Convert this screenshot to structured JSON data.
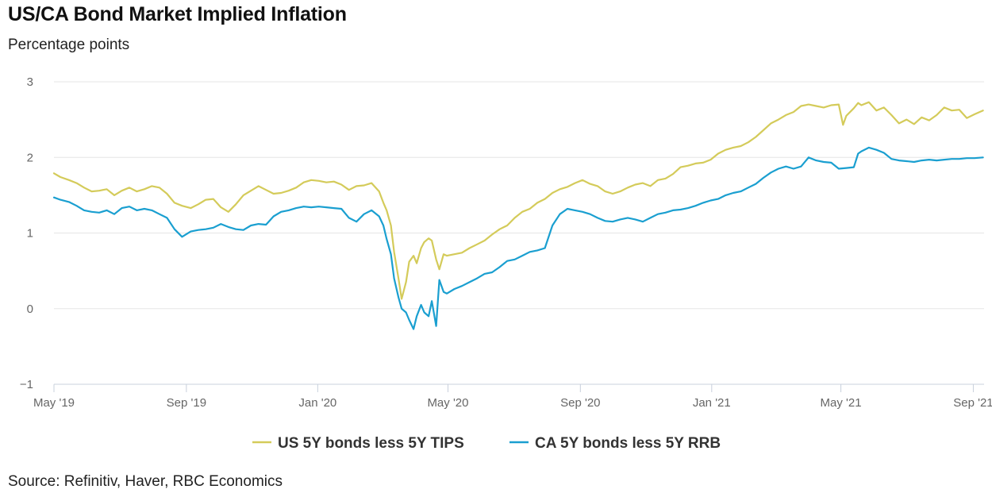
{
  "chart_data": {
    "type": "line",
    "title": "US/CA Bond Market Implied Inflation",
    "subtitle": "Percentage points",
    "source": "Source: Refinitiv, Haver, RBC Economics",
    "ylim": [
      -1,
      3
    ],
    "yticks": [
      -1,
      0,
      1,
      2,
      3
    ],
    "ytick_labels": [
      "−1",
      "0",
      "1",
      "2",
      "3"
    ],
    "xlim": [
      "2019-05-01",
      "2021-09-11"
    ],
    "xticks": [
      "2019-05-01",
      "2019-09-01",
      "2020-01-01",
      "2020-05-01",
      "2020-09-01",
      "2021-01-01",
      "2021-05-01",
      "2021-09-01"
    ],
    "xtick_labels": [
      "May '19",
      "Sep '19",
      "Jan '20",
      "May '20",
      "Sep '20",
      "Jan '21",
      "May '21",
      "Sep '21"
    ],
    "grid": "horizontal",
    "legend_position": "bottom",
    "series": [
      {
        "name": "US 5Y bonds less 5Y TIPS",
        "color": "#d4cb5a",
        "points": [
          [
            "2019-05-01",
            1.79
          ],
          [
            "2019-05-07",
            1.74
          ],
          [
            "2019-05-15",
            1.7
          ],
          [
            "2019-05-22",
            1.66
          ],
          [
            "2019-05-29",
            1.6
          ],
          [
            "2019-06-05",
            1.55
          ],
          [
            "2019-06-12",
            1.56
          ],
          [
            "2019-06-19",
            1.58
          ],
          [
            "2019-06-26",
            1.5
          ],
          [
            "2019-07-03",
            1.56
          ],
          [
            "2019-07-10",
            1.6
          ],
          [
            "2019-07-17",
            1.55
          ],
          [
            "2019-07-24",
            1.58
          ],
          [
            "2019-07-31",
            1.62
          ],
          [
            "2019-08-07",
            1.6
          ],
          [
            "2019-08-14",
            1.52
          ],
          [
            "2019-08-21",
            1.4
          ],
          [
            "2019-08-28",
            1.36
          ],
          [
            "2019-09-05",
            1.33
          ],
          [
            "2019-09-12",
            1.38
          ],
          [
            "2019-09-19",
            1.44
          ],
          [
            "2019-09-26",
            1.45
          ],
          [
            "2019-10-03",
            1.34
          ],
          [
            "2019-10-10",
            1.28
          ],
          [
            "2019-10-17",
            1.38
          ],
          [
            "2019-10-24",
            1.5
          ],
          [
            "2019-10-31",
            1.56
          ],
          [
            "2019-11-07",
            1.62
          ],
          [
            "2019-11-14",
            1.57
          ],
          [
            "2019-11-21",
            1.52
          ],
          [
            "2019-11-28",
            1.53
          ],
          [
            "2019-12-05",
            1.56
          ],
          [
            "2019-12-12",
            1.6
          ],
          [
            "2019-12-19",
            1.67
          ],
          [
            "2019-12-26",
            1.7
          ],
          [
            "2020-01-02",
            1.69
          ],
          [
            "2020-01-09",
            1.67
          ],
          [
            "2020-01-16",
            1.68
          ],
          [
            "2020-01-23",
            1.64
          ],
          [
            "2020-01-30",
            1.57
          ],
          [
            "2020-02-06",
            1.62
          ],
          [
            "2020-02-13",
            1.63
          ],
          [
            "2020-02-20",
            1.66
          ],
          [
            "2020-02-27",
            1.55
          ],
          [
            "2020-03-02",
            1.4
          ],
          [
            "2020-03-05",
            1.3
          ],
          [
            "2020-03-09",
            1.1
          ],
          [
            "2020-03-12",
            0.75
          ],
          [
            "2020-03-16",
            0.4
          ],
          [
            "2020-03-19",
            0.13
          ],
          [
            "2020-03-23",
            0.35
          ],
          [
            "2020-03-26",
            0.62
          ],
          [
            "2020-03-30",
            0.7
          ],
          [
            "2020-04-02",
            0.6
          ],
          [
            "2020-04-06",
            0.8
          ],
          [
            "2020-04-09",
            0.88
          ],
          [
            "2020-04-13",
            0.93
          ],
          [
            "2020-04-16",
            0.9
          ],
          [
            "2020-04-20",
            0.65
          ],
          [
            "2020-04-23",
            0.52
          ],
          [
            "2020-04-27",
            0.72
          ],
          [
            "2020-04-30",
            0.7
          ],
          [
            "2020-05-07",
            0.72
          ],
          [
            "2020-05-14",
            0.74
          ],
          [
            "2020-05-21",
            0.8
          ],
          [
            "2020-05-28",
            0.85
          ],
          [
            "2020-06-04",
            0.9
          ],
          [
            "2020-06-11",
            0.98
          ],
          [
            "2020-06-18",
            1.05
          ],
          [
            "2020-06-25",
            1.1
          ],
          [
            "2020-07-02",
            1.2
          ],
          [
            "2020-07-09",
            1.28
          ],
          [
            "2020-07-16",
            1.32
          ],
          [
            "2020-07-23",
            1.4
          ],
          [
            "2020-07-30",
            1.45
          ],
          [
            "2020-08-06",
            1.53
          ],
          [
            "2020-08-13",
            1.58
          ],
          [
            "2020-08-20",
            1.61
          ],
          [
            "2020-08-27",
            1.66
          ],
          [
            "2020-09-03",
            1.7
          ],
          [
            "2020-09-10",
            1.65
          ],
          [
            "2020-09-17",
            1.62
          ],
          [
            "2020-09-24",
            1.55
          ],
          [
            "2020-10-01",
            1.52
          ],
          [
            "2020-10-08",
            1.55
          ],
          [
            "2020-10-15",
            1.6
          ],
          [
            "2020-10-22",
            1.64
          ],
          [
            "2020-10-29",
            1.66
          ],
          [
            "2020-11-05",
            1.62
          ],
          [
            "2020-11-12",
            1.7
          ],
          [
            "2020-11-19",
            1.72
          ],
          [
            "2020-11-26",
            1.78
          ],
          [
            "2020-12-03",
            1.87
          ],
          [
            "2020-12-10",
            1.89
          ],
          [
            "2020-12-17",
            1.92
          ],
          [
            "2020-12-24",
            1.93
          ],
          [
            "2020-12-31",
            1.97
          ],
          [
            "2021-01-07",
            2.05
          ],
          [
            "2021-01-14",
            2.1
          ],
          [
            "2021-01-21",
            2.13
          ],
          [
            "2021-01-28",
            2.15
          ],
          [
            "2021-02-04",
            2.2
          ],
          [
            "2021-02-11",
            2.27
          ],
          [
            "2021-02-18",
            2.36
          ],
          [
            "2021-02-25",
            2.45
          ],
          [
            "2021-03-04",
            2.5
          ],
          [
            "2021-03-11",
            2.56
          ],
          [
            "2021-03-18",
            2.6
          ],
          [
            "2021-03-25",
            2.68
          ],
          [
            "2021-04-01",
            2.7
          ],
          [
            "2021-04-08",
            2.68
          ],
          [
            "2021-04-15",
            2.66
          ],
          [
            "2021-04-22",
            2.69
          ],
          [
            "2021-04-29",
            2.7
          ],
          [
            "2021-05-03",
            2.43
          ],
          [
            "2021-05-06",
            2.55
          ],
          [
            "2021-05-13",
            2.65
          ],
          [
            "2021-05-17",
            2.72
          ],
          [
            "2021-05-20",
            2.69
          ],
          [
            "2021-05-27",
            2.73
          ],
          [
            "2021-06-03",
            2.62
          ],
          [
            "2021-06-10",
            2.66
          ],
          [
            "2021-06-17",
            2.56
          ],
          [
            "2021-06-24",
            2.45
          ],
          [
            "2021-07-01",
            2.5
          ],
          [
            "2021-07-08",
            2.44
          ],
          [
            "2021-07-15",
            2.53
          ],
          [
            "2021-07-22",
            2.49
          ],
          [
            "2021-07-29",
            2.56
          ],
          [
            "2021-08-05",
            2.66
          ],
          [
            "2021-08-12",
            2.62
          ],
          [
            "2021-08-19",
            2.63
          ],
          [
            "2021-08-26",
            2.52
          ],
          [
            "2021-09-02",
            2.57
          ],
          [
            "2021-09-10",
            2.62
          ]
        ]
      },
      {
        "name": "CA 5Y bonds less 5Y RRB",
        "color": "#1a9fd0",
        "points": [
          [
            "2019-05-01",
            1.47
          ],
          [
            "2019-05-07",
            1.44
          ],
          [
            "2019-05-15",
            1.41
          ],
          [
            "2019-05-22",
            1.36
          ],
          [
            "2019-05-29",
            1.3
          ],
          [
            "2019-06-05",
            1.28
          ],
          [
            "2019-06-12",
            1.27
          ],
          [
            "2019-06-19",
            1.3
          ],
          [
            "2019-06-26",
            1.25
          ],
          [
            "2019-07-03",
            1.33
          ],
          [
            "2019-07-10",
            1.35
          ],
          [
            "2019-07-17",
            1.3
          ],
          [
            "2019-07-24",
            1.32
          ],
          [
            "2019-07-31",
            1.3
          ],
          [
            "2019-08-07",
            1.25
          ],
          [
            "2019-08-14",
            1.2
          ],
          [
            "2019-08-21",
            1.05
          ],
          [
            "2019-08-28",
            0.95
          ],
          [
            "2019-09-05",
            1.02
          ],
          [
            "2019-09-12",
            1.04
          ],
          [
            "2019-09-19",
            1.05
          ],
          [
            "2019-09-26",
            1.07
          ],
          [
            "2019-10-03",
            1.12
          ],
          [
            "2019-10-10",
            1.08
          ],
          [
            "2019-10-17",
            1.05
          ],
          [
            "2019-10-24",
            1.04
          ],
          [
            "2019-10-31",
            1.1
          ],
          [
            "2019-11-07",
            1.12
          ],
          [
            "2019-11-14",
            1.11
          ],
          [
            "2019-11-21",
            1.22
          ],
          [
            "2019-11-28",
            1.28
          ],
          [
            "2019-12-05",
            1.3
          ],
          [
            "2019-12-12",
            1.33
          ],
          [
            "2019-12-19",
            1.35
          ],
          [
            "2019-12-26",
            1.34
          ],
          [
            "2020-01-02",
            1.35
          ],
          [
            "2020-01-09",
            1.34
          ],
          [
            "2020-01-16",
            1.33
          ],
          [
            "2020-01-23",
            1.32
          ],
          [
            "2020-01-30",
            1.2
          ],
          [
            "2020-02-06",
            1.15
          ],
          [
            "2020-02-13",
            1.25
          ],
          [
            "2020-02-20",
            1.3
          ],
          [
            "2020-02-27",
            1.22
          ],
          [
            "2020-03-02",
            1.1
          ],
          [
            "2020-03-05",
            0.92
          ],
          [
            "2020-03-09",
            0.72
          ],
          [
            "2020-03-12",
            0.4
          ],
          [
            "2020-03-16",
            0.15
          ],
          [
            "2020-03-19",
            0.0
          ],
          [
            "2020-03-23",
            -0.05
          ],
          [
            "2020-03-26",
            -0.15
          ],
          [
            "2020-03-30",
            -0.27
          ],
          [
            "2020-04-02",
            -0.1
          ],
          [
            "2020-04-06",
            0.05
          ],
          [
            "2020-04-09",
            -0.05
          ],
          [
            "2020-04-13",
            -0.1
          ],
          [
            "2020-04-16",
            0.1
          ],
          [
            "2020-04-20",
            -0.23
          ],
          [
            "2020-04-23",
            0.38
          ],
          [
            "2020-04-27",
            0.22
          ],
          [
            "2020-04-30",
            0.2
          ],
          [
            "2020-05-07",
            0.26
          ],
          [
            "2020-05-14",
            0.3
          ],
          [
            "2020-05-21",
            0.35
          ],
          [
            "2020-05-28",
            0.4
          ],
          [
            "2020-06-04",
            0.46
          ],
          [
            "2020-06-11",
            0.48
          ],
          [
            "2020-06-18",
            0.55
          ],
          [
            "2020-06-25",
            0.63
          ],
          [
            "2020-07-02",
            0.65
          ],
          [
            "2020-07-09",
            0.7
          ],
          [
            "2020-07-16",
            0.75
          ],
          [
            "2020-07-23",
            0.77
          ],
          [
            "2020-07-30",
            0.8
          ],
          [
            "2020-08-06",
            1.1
          ],
          [
            "2020-08-13",
            1.25
          ],
          [
            "2020-08-20",
            1.32
          ],
          [
            "2020-08-27",
            1.3
          ],
          [
            "2020-09-03",
            1.28
          ],
          [
            "2020-09-10",
            1.25
          ],
          [
            "2020-09-17",
            1.2
          ],
          [
            "2020-09-24",
            1.16
          ],
          [
            "2020-10-01",
            1.15
          ],
          [
            "2020-10-08",
            1.18
          ],
          [
            "2020-10-15",
            1.2
          ],
          [
            "2020-10-22",
            1.18
          ],
          [
            "2020-10-29",
            1.15
          ],
          [
            "2020-11-05",
            1.2
          ],
          [
            "2020-11-12",
            1.25
          ],
          [
            "2020-11-19",
            1.27
          ],
          [
            "2020-11-26",
            1.3
          ],
          [
            "2020-12-03",
            1.31
          ],
          [
            "2020-12-10",
            1.33
          ],
          [
            "2020-12-17",
            1.36
          ],
          [
            "2020-12-24",
            1.4
          ],
          [
            "2020-12-31",
            1.43
          ],
          [
            "2021-01-07",
            1.45
          ],
          [
            "2021-01-14",
            1.5
          ],
          [
            "2021-01-21",
            1.53
          ],
          [
            "2021-01-28",
            1.55
          ],
          [
            "2021-02-04",
            1.6
          ],
          [
            "2021-02-11",
            1.65
          ],
          [
            "2021-02-18",
            1.73
          ],
          [
            "2021-02-25",
            1.8
          ],
          [
            "2021-03-04",
            1.85
          ],
          [
            "2021-03-11",
            1.88
          ],
          [
            "2021-03-18",
            1.85
          ],
          [
            "2021-03-25",
            1.88
          ],
          [
            "2021-04-01",
            2.0
          ],
          [
            "2021-04-08",
            1.96
          ],
          [
            "2021-04-15",
            1.94
          ],
          [
            "2021-04-22",
            1.93
          ],
          [
            "2021-04-29",
            1.85
          ],
          [
            "2021-05-06",
            1.86
          ],
          [
            "2021-05-13",
            1.87
          ],
          [
            "2021-05-17",
            2.05
          ],
          [
            "2021-05-20",
            2.08
          ],
          [
            "2021-05-27",
            2.13
          ],
          [
            "2021-06-03",
            2.1
          ],
          [
            "2021-06-10",
            2.06
          ],
          [
            "2021-06-17",
            1.98
          ],
          [
            "2021-06-24",
            1.96
          ],
          [
            "2021-07-01",
            1.95
          ],
          [
            "2021-07-08",
            1.94
          ],
          [
            "2021-07-15",
            1.96
          ],
          [
            "2021-07-22",
            1.97
          ],
          [
            "2021-07-29",
            1.96
          ],
          [
            "2021-08-05",
            1.97
          ],
          [
            "2021-08-12",
            1.98
          ],
          [
            "2021-08-19",
            1.98
          ],
          [
            "2021-08-26",
            1.99
          ],
          [
            "2021-09-02",
            1.99
          ],
          [
            "2021-09-10",
            2.0
          ]
        ]
      }
    ]
  }
}
